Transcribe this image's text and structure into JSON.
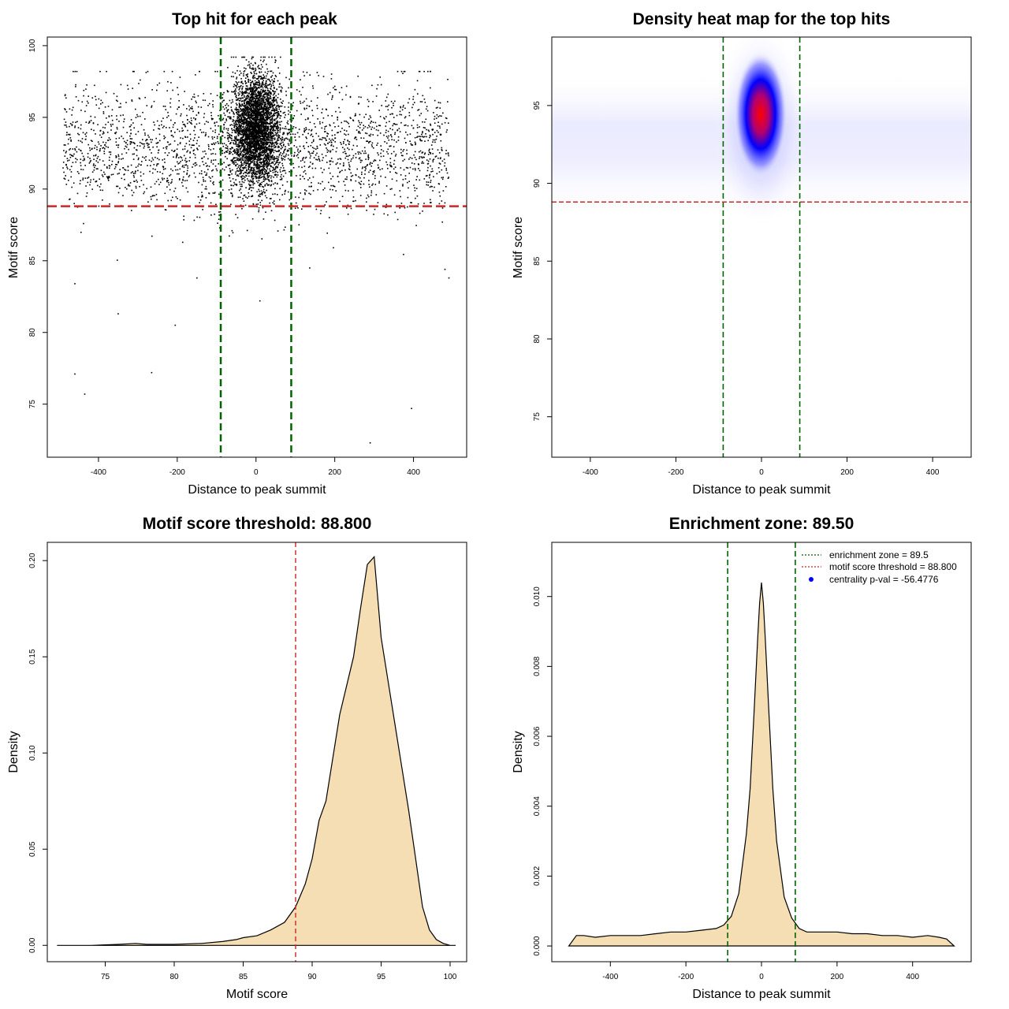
{
  "colors": {
    "fill": "#f5deb3",
    "enrichment_line": "#006400",
    "threshold_line": "#cd2626",
    "point": "#000000",
    "heat_low": "#0000ff",
    "heat_high": "#ff0000"
  },
  "chart_data": [
    {
      "id": "scatter",
      "type": "scatter",
      "title": "Top hit for each peak",
      "xlabel": "Distance to peak summit",
      "ylabel": "Motif score",
      "xlim": [
        -530,
        535
      ],
      "ylim": [
        71.3,
        100.6
      ],
      "xticks": [
        -400,
        -200,
        0,
        200,
        400
      ],
      "yticks": [
        75,
        80,
        85,
        90,
        95,
        100
      ],
      "vlines": [
        -89.5,
        89.5
      ],
      "hline": 88.8,
      "grid": false,
      "legend": "none",
      "outliers": [
        [
          -460,
          77.1
        ],
        [
          -435,
          75.7
        ],
        [
          -350,
          81.3
        ],
        [
          -265,
          77.2
        ],
        [
          -205,
          80.5
        ],
        [
          290,
          72.3
        ],
        [
          395,
          74.7
        ],
        [
          490,
          83.8
        ],
        [
          -460,
          83.4
        ],
        [
          -150,
          83.8
        ],
        [
          480,
          84.4
        ],
        [
          10,
          82.2
        ]
      ]
    },
    {
      "id": "heatmap",
      "type": "heatmap",
      "title": "Density heat map for the top hits",
      "xlabel": "Distance to peak summit",
      "ylabel": "Motif score",
      "xlim": [
        -490,
        490
      ],
      "ylim": [
        72.4,
        99.4
      ],
      "xticks": [
        -400,
        -200,
        0,
        200,
        400
      ],
      "yticks": [
        75,
        80,
        85,
        90,
        95
      ],
      "vlines": [
        -89.5,
        89.5
      ],
      "hline": 88.8,
      "peak": {
        "x": 0,
        "y": 94.5
      },
      "grid": false,
      "legend": "none"
    },
    {
      "id": "score-density",
      "type": "area",
      "title": "Motif score threshold: 88.800",
      "xlabel": "Motif score",
      "ylabel": "Density",
      "xlim": [
        70.8,
        101.2
      ],
      "ylim": [
        -0.0085,
        0.2095
      ],
      "xticks": [
        75,
        80,
        85,
        90,
        95,
        100
      ],
      "yticks": [
        0,
        0.05,
        0.1,
        0.15,
        0.2
      ],
      "ytick_labels": [
        "0.00",
        "0.05",
        "0.10",
        "0.15",
        "0.20"
      ],
      "vline": 88.8,
      "grid": false,
      "legend": "none",
      "x": [
        71.5,
        74,
        76,
        77.2,
        78,
        80,
        82,
        83.5,
        84.5,
        85,
        86,
        87,
        88,
        88.8,
        89.5,
        90,
        90.5,
        91,
        92,
        93,
        93.5,
        94,
        94.5,
        95,
        96,
        97,
        97.5,
        98,
        98.5,
        99,
        99.5,
        100,
        100.4
      ],
      "y": [
        0,
        0,
        0.0005,
        0.001,
        0.0005,
        0.0005,
        0.001,
        0.002,
        0.003,
        0.004,
        0.005,
        0.008,
        0.012,
        0.02,
        0.032,
        0.045,
        0.065,
        0.075,
        0.12,
        0.15,
        0.175,
        0.198,
        0.202,
        0.16,
        0.115,
        0.07,
        0.045,
        0.02,
        0.008,
        0.003,
        0.001,
        0,
        0
      ]
    },
    {
      "id": "distance-density",
      "type": "area",
      "title": "Enrichment zone: 89.50",
      "xlabel": "Distance to peak summit",
      "ylabel": "Density",
      "xlim": [
        -555,
        555
      ],
      "ylim": [
        -0.00045,
        0.01155
      ],
      "xticks": [
        -400,
        -200,
        0,
        200,
        400
      ],
      "yticks": [
        0,
        0.002,
        0.004,
        0.006,
        0.008,
        0.01
      ],
      "ytick_labels": [
        "0.000",
        "0.002",
        "0.004",
        "0.006",
        "0.008",
        "0.010"
      ],
      "vlines": [
        -89.5,
        89.5
      ],
      "grid": false,
      "legend_position": "top-right",
      "legend": [
        {
          "label": "enrichment zone = 89.5",
          "style": "dotted",
          "color": "#006400"
        },
        {
          "label": "motif score threshold = 88.800",
          "style": "dotted",
          "color": "#cd2626"
        },
        {
          "label": "centrality p-val = -56.4776",
          "style": "point",
          "color": "#0000ff"
        }
      ],
      "x": [
        -510,
        -490,
        -470,
        -440,
        -400,
        -360,
        -320,
        -280,
        -240,
        -200,
        -160,
        -120,
        -100,
        -80,
        -60,
        -40,
        -30,
        -20,
        -10,
        -5,
        0,
        5,
        10,
        20,
        30,
        40,
        60,
        80,
        100,
        120,
        160,
        200,
        240,
        280,
        320,
        360,
        400,
        440,
        470,
        490,
        510
      ],
      "y": [
        0,
        0.0003,
        0.0003,
        0.00025,
        0.0003,
        0.0003,
        0.0003,
        0.00035,
        0.0004,
        0.0004,
        0.00045,
        0.0005,
        0.0006,
        0.00085,
        0.0015,
        0.0032,
        0.0045,
        0.0066,
        0.0088,
        0.0098,
        0.0104,
        0.0098,
        0.0088,
        0.0066,
        0.0045,
        0.003,
        0.0014,
        0.0008,
        0.0005,
        0.0004,
        0.0004,
        0.0004,
        0.00035,
        0.00035,
        0.0003,
        0.0003,
        0.00025,
        0.0003,
        0.00025,
        0.0002,
        0
      ]
    }
  ]
}
